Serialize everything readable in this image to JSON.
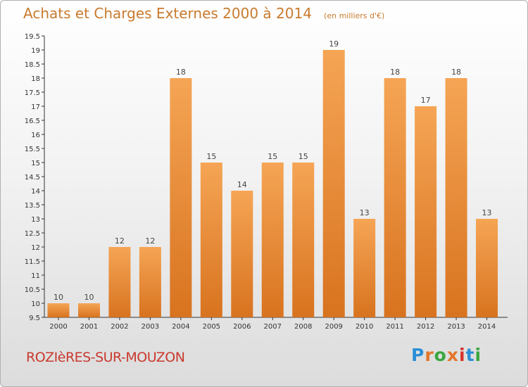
{
  "header": {
    "title": "Achats et Charges Externes 2000 à 2014",
    "unit": "(en milliers d'€)"
  },
  "footer": {
    "commune": "ROZIèRES-SUR-MOUZON",
    "logo_text": "Proxiti"
  },
  "colors": {
    "bar_light": "#f5a555",
    "bar_dark": "#d8731f",
    "title": "#c97a2e",
    "commune": "#c9392e",
    "logo": [
      "#2a8fd6",
      "#e2762a",
      "#3aa640",
      "#e2762a",
      "#d6332b",
      "#2a8fd6",
      "#3aa640"
    ]
  },
  "chart_data": {
    "type": "bar",
    "title": "Achats et Charges Externes 2000 à 2014",
    "unit": "(en milliers d'€)",
    "categories": [
      "2000",
      "2001",
      "2002",
      "2003",
      "2004",
      "2005",
      "2006",
      "2007",
      "2008",
      "2009",
      "2010",
      "2011",
      "2012",
      "2013",
      "2014"
    ],
    "values": [
      10,
      10,
      12,
      12,
      18,
      15,
      14,
      15,
      15,
      19,
      13,
      18,
      17,
      18,
      13
    ],
    "ylim": [
      9.5,
      19.5
    ],
    "yticks": [
      "9.5",
      "10",
      "10.5",
      "11",
      "11.5",
      "12",
      "12.5",
      "13",
      "13.5",
      "14",
      "14.5",
      "15",
      "15.5",
      "16",
      "16.5",
      "17",
      "17.5",
      "18",
      "18.5",
      "19",
      "19.5"
    ],
    "grid": false,
    "legend": "none"
  }
}
